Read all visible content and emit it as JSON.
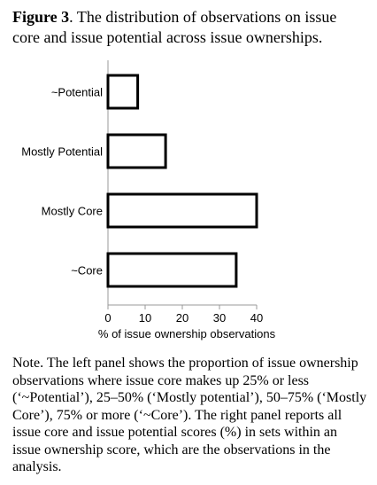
{
  "caption": {
    "label": "Figure 3",
    "text": ". The distribution of observations on issue core and issue potential across issue ownerships."
  },
  "chart_data": {
    "type": "bar",
    "orientation": "horizontal",
    "categories": [
      "~Potential",
      "Mostly Potential",
      "Mostly Core",
      "~Core"
    ],
    "values": [
      8,
      15.5,
      40,
      34.5
    ],
    "xlabel": "% of issue ownership observations",
    "xlim": [
      0,
      40
    ],
    "xticks": [
      0,
      10,
      20,
      30,
      40
    ],
    "grid": false,
    "bar_fill": "#ffffff",
    "bar_stroke": "#000000"
  },
  "note": "Note. The left panel shows the proportion of issue ownership observations where issue core makes up 25% or less (‘~Potential’), 25–50% (‘Mostly potential’), 50–75% (‘Mostly Core’), 75% or more (‘~Core’). The right panel reports all issue core and issue potential scores (%) in sets within an issue ownership score, which are the observations in the analysis."
}
